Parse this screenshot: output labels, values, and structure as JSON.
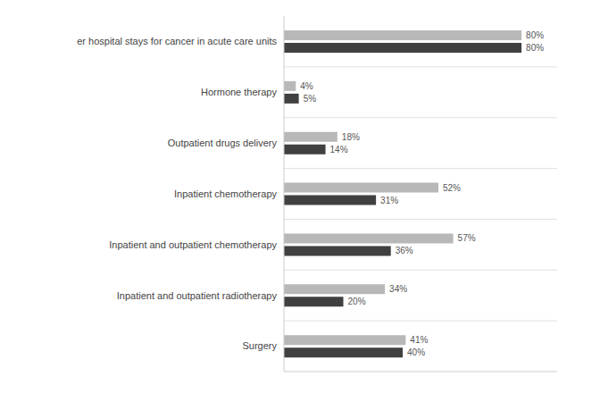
{
  "chart_data": {
    "type": "bar",
    "orientation": "horizontal",
    "categories": [
      "Surgery",
      "Inpatient and outpatient radiotherapy",
      "Inpatient and outpatient  chemotherapy",
      "Inpatient chemotherapy",
      "Outpatient drugs delivery",
      "Hormone therapy",
      "er hospital stays for cancer in acute care units"
    ],
    "series": [
      {
        "color": "#b8b8b8",
        "values": [
          41,
          34,
          57,
          52,
          18,
          4,
          80
        ],
        "value_labels": [
          "41%",
          "34%",
          "57%",
          "52%",
          "18%",
          "4%",
          "80%"
        ]
      },
      {
        "color": "#404040",
        "values": [
          40,
          20,
          36,
          31,
          14,
          5,
          80
        ],
        "value_labels": [
          "40%",
          "20%",
          "36%",
          "31%",
          "14%",
          "5%",
          "80%"
        ]
      }
    ],
    "xlim": [
      0,
      92
    ],
    "data_labels": true,
    "tick_labels": "y",
    "grid": true
  }
}
